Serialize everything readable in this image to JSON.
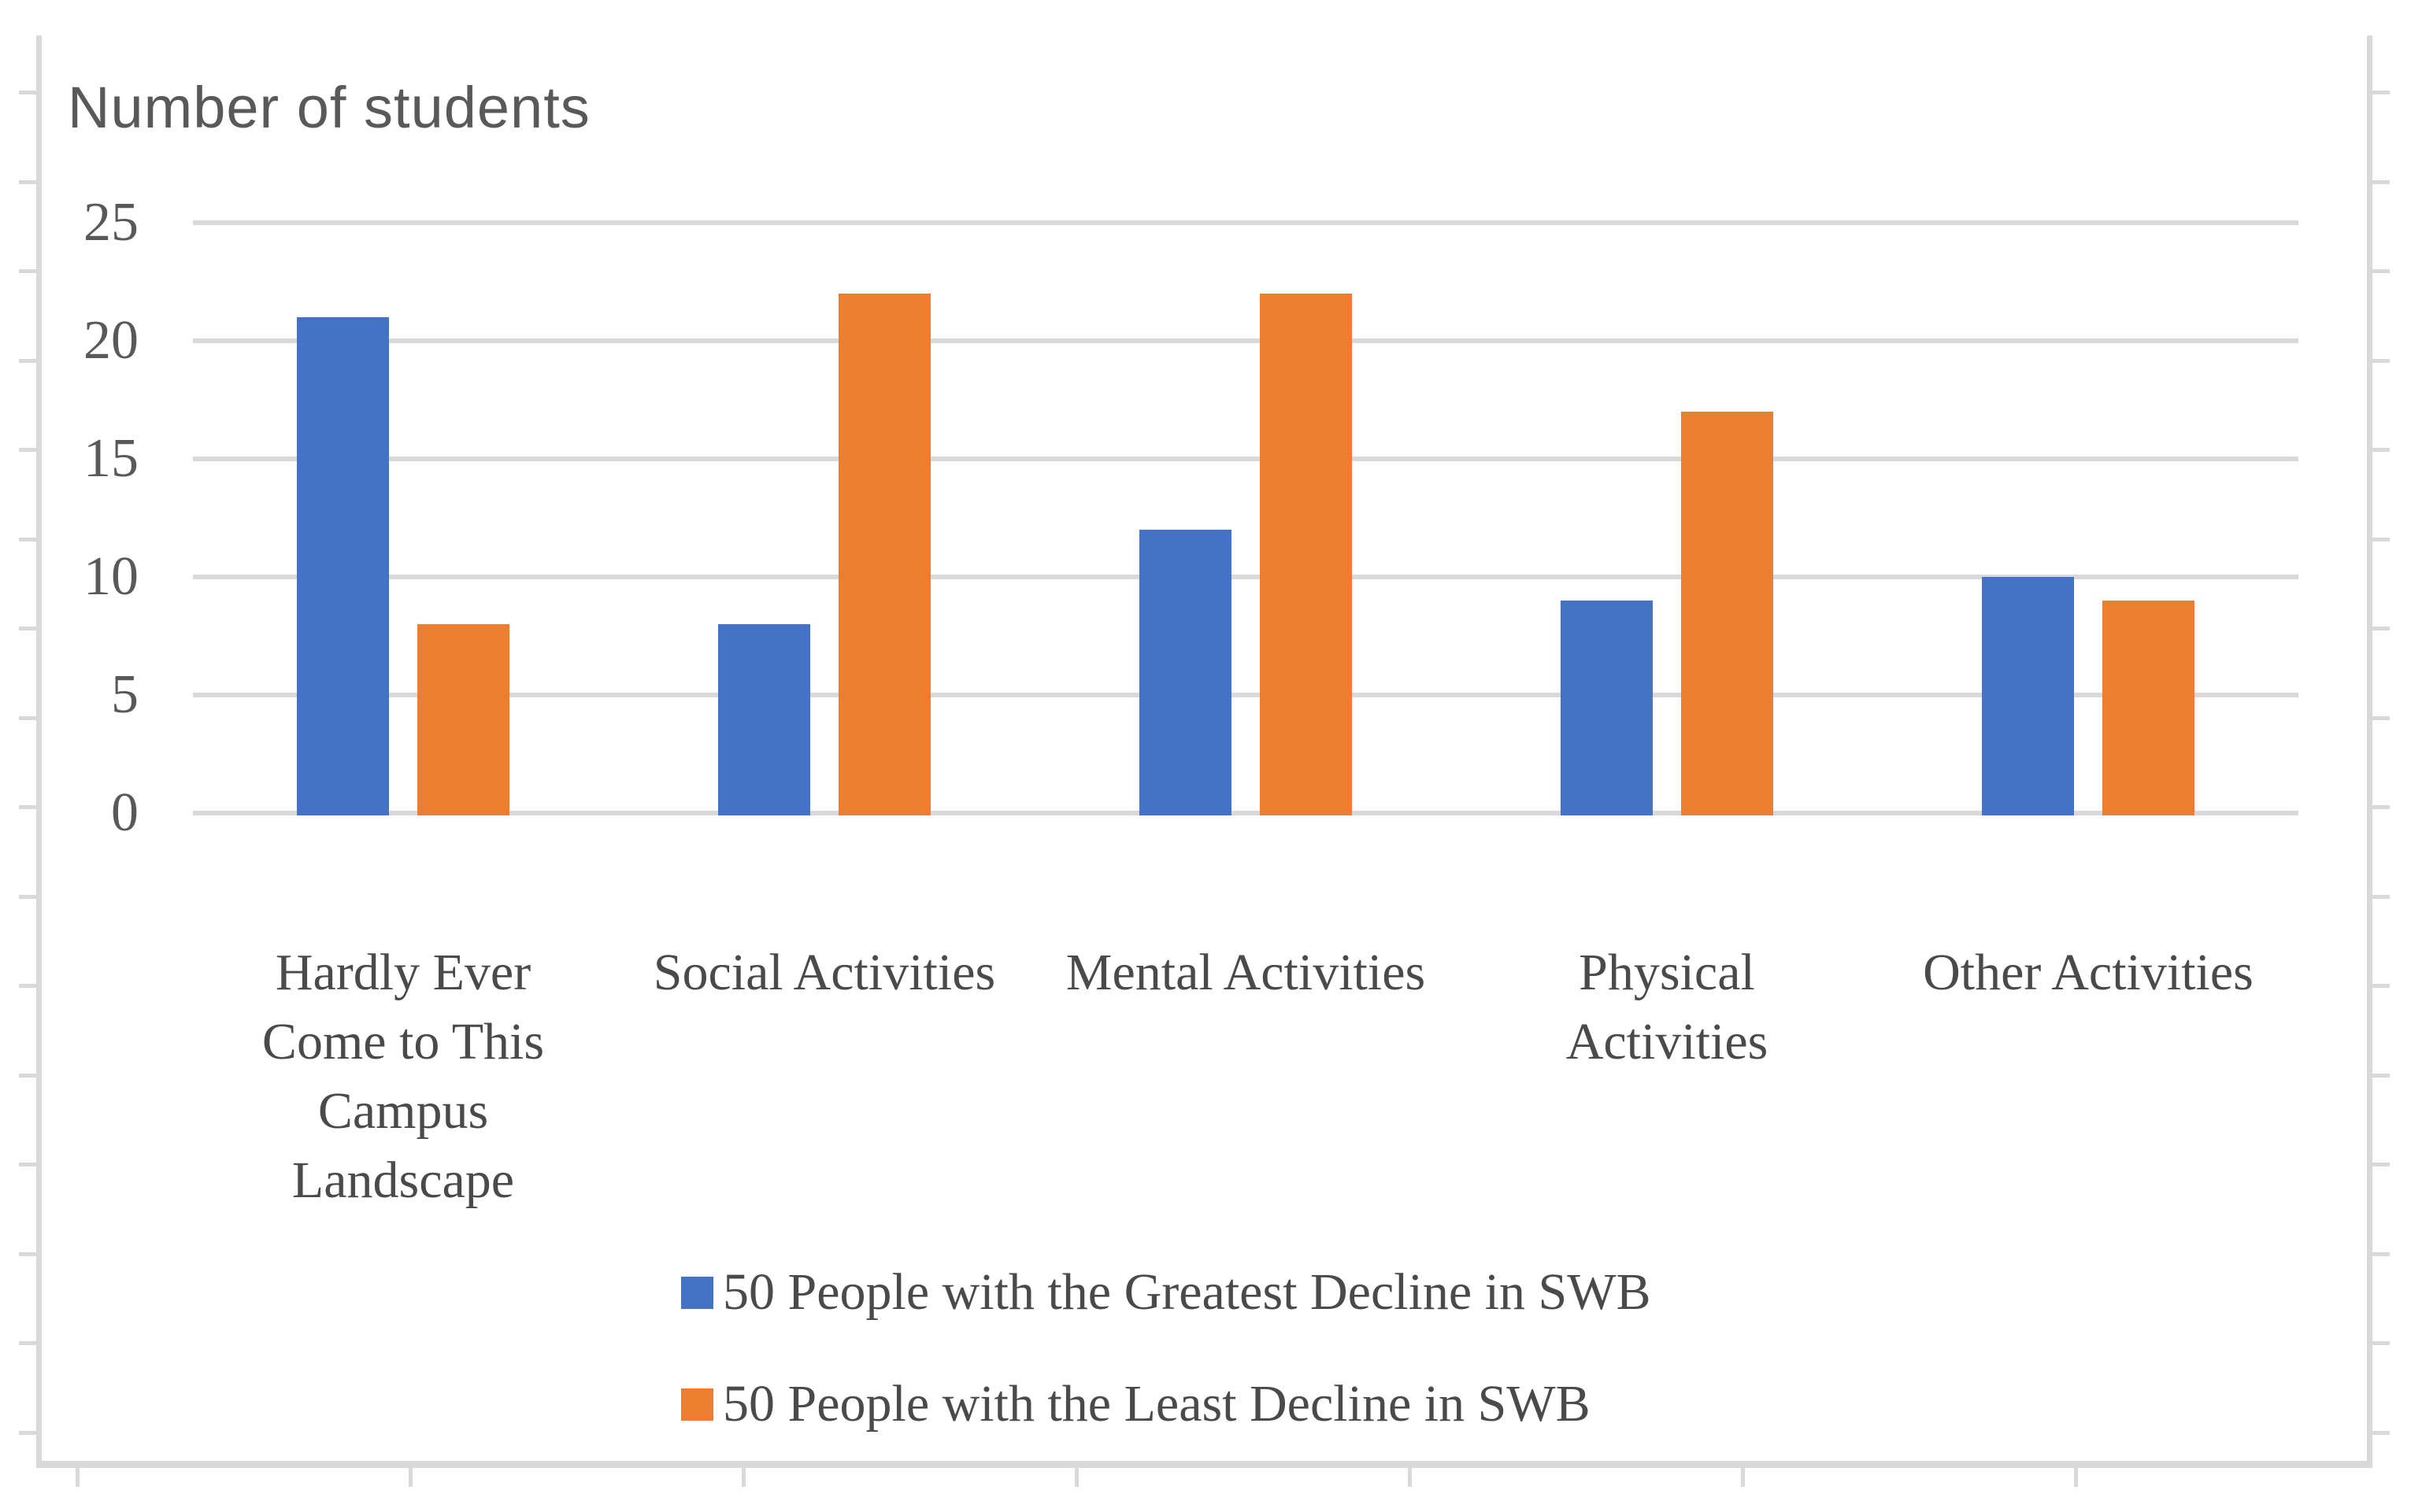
{
  "chart_data": {
    "type": "bar",
    "title": "Number of students",
    "categories": [
      "Hardly Ever Come to This Campus Landscape",
      "Social Activities",
      "Mental Activities",
      "Physical Activities",
      "Other Activities"
    ],
    "series": [
      {
        "name": "50 People with the Greatest Decline in SWB",
        "color": "#4472C4",
        "values": [
          21,
          8,
          12,
          9,
          10
        ]
      },
      {
        "name": "50 People with the Least Decline in SWB",
        "color": "#ED7D31",
        "values": [
          8,
          22,
          22,
          17,
          9
        ]
      }
    ],
    "yticks": [
      0,
      5,
      10,
      15,
      20,
      25
    ],
    "ylim": [
      0,
      25
    ],
    "xlabel": "",
    "ylabel": "",
    "grid": true,
    "legend_position": "bottom",
    "colors": {
      "gridline": "#d9d9d9",
      "frame": "#d9d9d9",
      "title_text": "#595959",
      "axis_text": "#595959",
      "label_text": "#4a4a4a",
      "background": "#ffffff"
    }
  }
}
